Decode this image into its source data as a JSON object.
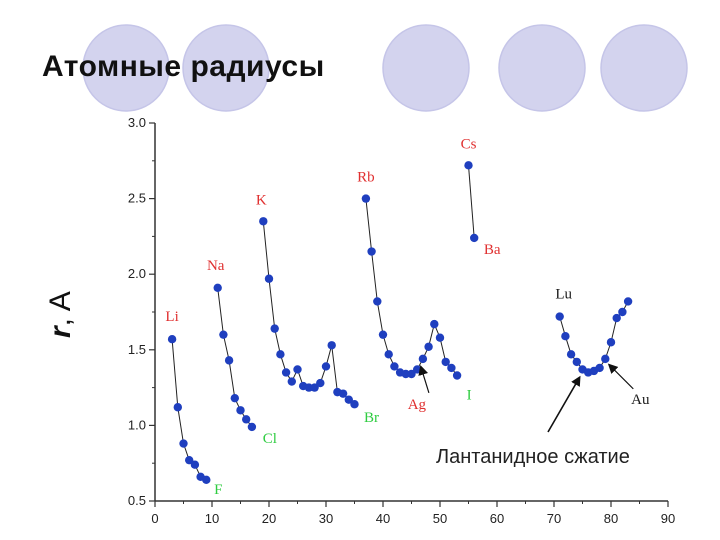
{
  "slide": {
    "title": "Атомные радиусы",
    "circle_fill": "#d3d3ee",
    "circle_stroke": "#c5c5e8"
  },
  "chart_data": {
    "type": "scatter",
    "ylabel_italic": "r",
    "ylabel_rest": ", A",
    "xlim": [
      0,
      90
    ],
    "ylim": [
      0.5,
      3.0
    ],
    "x_ticks": [
      0,
      10,
      20,
      30,
      40,
      50,
      60,
      70,
      80,
      90
    ],
    "y_ticks": [
      "0.5",
      "1.0",
      "1.5",
      "2.0",
      "2.5",
      "3.0"
    ],
    "marker_color": "#1f3fbf",
    "series": [
      {
        "points": [
          [
            3,
            1.57
          ],
          [
            4,
            1.12
          ],
          [
            5,
            0.88
          ],
          [
            6,
            0.77
          ],
          [
            7,
            0.74
          ],
          [
            8,
            0.66
          ],
          [
            9,
            0.64
          ]
        ]
      },
      {
        "points": [
          [
            11,
            1.91
          ],
          [
            12,
            1.6
          ],
          [
            13,
            1.43
          ],
          [
            14,
            1.18
          ],
          [
            15,
            1.1
          ],
          [
            16,
            1.04
          ],
          [
            17,
            0.99
          ]
        ]
      },
      {
        "points": [
          [
            19,
            2.35
          ],
          [
            20,
            1.97
          ],
          [
            21,
            1.64
          ],
          [
            22,
            1.47
          ],
          [
            23,
            1.35
          ],
          [
            24,
            1.29
          ],
          [
            25,
            1.37
          ],
          [
            26,
            1.26
          ],
          [
            27,
            1.25
          ],
          [
            28,
            1.25
          ],
          [
            29,
            1.28
          ],
          [
            30,
            1.39
          ],
          [
            31,
            1.53
          ],
          [
            32,
            1.22
          ],
          [
            33,
            1.21
          ],
          [
            34,
            1.17
          ],
          [
            35,
            1.14
          ]
        ]
      },
      {
        "points": [
          [
            37,
            2.5
          ],
          [
            38,
            2.15
          ],
          [
            39,
            1.82
          ],
          [
            40,
            1.6
          ],
          [
            41,
            1.47
          ],
          [
            42,
            1.39
          ],
          [
            43,
            1.35
          ],
          [
            44,
            1.34
          ],
          [
            45,
            1.34
          ],
          [
            46,
            1.37
          ],
          [
            47,
            1.44
          ],
          [
            48,
            1.52
          ],
          [
            49,
            1.67
          ],
          [
            50,
            1.58
          ],
          [
            51,
            1.42
          ],
          [
            52,
            1.38
          ],
          [
            53,
            1.33
          ]
        ]
      },
      {
        "points": [
          [
            55,
            2.72
          ],
          [
            56,
            2.24
          ]
        ]
      },
      {
        "points": [
          [
            71,
            1.72
          ],
          [
            72,
            1.59
          ],
          [
            73,
            1.47
          ],
          [
            74,
            1.42
          ],
          [
            75,
            1.37
          ],
          [
            76,
            1.35
          ],
          [
            77,
            1.36
          ],
          [
            78,
            1.38
          ],
          [
            79,
            1.44
          ],
          [
            80,
            1.55
          ],
          [
            81,
            1.71
          ],
          [
            82,
            1.75
          ],
          [
            83,
            1.82
          ]
        ]
      }
    ],
    "element_labels": [
      {
        "text": "Li",
        "x": 3,
        "y": 1.57,
        "color": "#e03030"
      },
      {
        "text": "Na",
        "x": 11,
        "y": 1.91,
        "color": "#e03030"
      },
      {
        "text": "K",
        "x": 19,
        "y": 2.35,
        "color": "#e03030"
      },
      {
        "text": "Rb",
        "x": 37,
        "y": 2.5,
        "color": "#e03030"
      },
      {
        "text": "Cs",
        "x": 55,
        "y": 2.72,
        "color": "#e03030"
      },
      {
        "text": "Ba",
        "x": 56,
        "y": 2.24,
        "color": "#e03030"
      },
      {
        "text": "F",
        "x": 9,
        "y": 0.64,
        "color": "#2ecc40"
      },
      {
        "text": "Cl",
        "x": 17,
        "y": 0.99,
        "color": "#2ecc40"
      },
      {
        "text": "Br",
        "x": 35,
        "y": 1.14,
        "color": "#2ecc40"
      },
      {
        "text": "I",
        "x": 53,
        "y": 1.33,
        "color": "#2ecc40"
      },
      {
        "text": "Ag",
        "x": 47,
        "y": 1.44,
        "color": "#e03030"
      },
      {
        "text": "Lu",
        "x": 71,
        "y": 1.72,
        "color": "#1a1a1a"
      },
      {
        "text": "Au",
        "x": 79,
        "y": 1.44,
        "color": "#1a1a1a"
      }
    ],
    "annotation": "Лантанидное сжатие"
  }
}
